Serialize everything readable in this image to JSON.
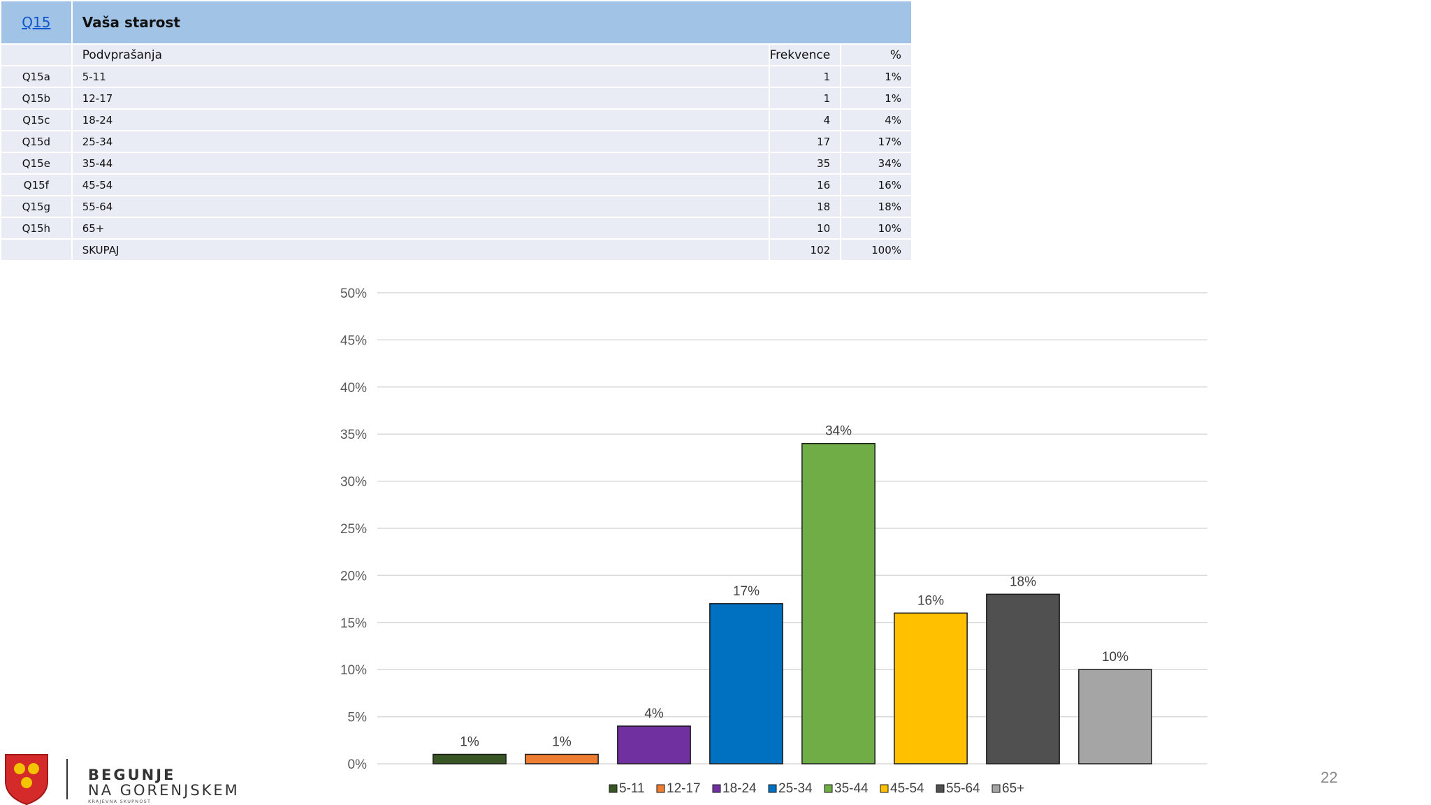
{
  "table": {
    "question_id": "Q15",
    "question_title": "Vaša starost",
    "header": [
      "Podvprašanja",
      "Frekvence",
      "%"
    ],
    "rows": [
      {
        "code": "Q15a",
        "label": "5-11",
        "freq": "1",
        "pct": "1%"
      },
      {
        "code": "Q15b",
        "label": "12-17",
        "freq": "1",
        "pct": "1%"
      },
      {
        "code": "Q15c",
        "label": "18-24",
        "freq": "4",
        "pct": "4%"
      },
      {
        "code": "Q15d",
        "label": "25-34",
        "freq": "17",
        "pct": "17%"
      },
      {
        "code": "Q15e",
        "label": "35-44",
        "freq": "35",
        "pct": "34%"
      },
      {
        "code": "Q15f",
        "label": "45-54",
        "freq": "16",
        "pct": "16%"
      },
      {
        "code": "Q15g",
        "label": "55-64",
        "freq": "18",
        "pct": "18%"
      },
      {
        "code": "Q15h",
        "label": "65+",
        "freq": "10",
        "pct": "10%"
      }
    ],
    "total": {
      "code": "",
      "label": "SKUPAJ",
      "freq": "102",
      "pct": "100%"
    }
  },
  "chart_data": {
    "type": "bar",
    "categories": [
      "5-11",
      "12-17",
      "18-24",
      "25-34",
      "35-44",
      "45-54",
      "55-64",
      "65+"
    ],
    "values": [
      1,
      1,
      4,
      17,
      34,
      16,
      18,
      10
    ],
    "data_labels": [
      "1%",
      "1%",
      "4%",
      "17%",
      "34%",
      "16%",
      "18%",
      "10%"
    ],
    "colors": [
      "#375623",
      "#ed7d31",
      "#7030a0",
      "#0070c0",
      "#70ad47",
      "#ffc000",
      "#505050",
      "#a5a5a5"
    ],
    "ylim": [
      0,
      50
    ],
    "ytick_values": [
      0,
      5,
      10,
      15,
      20,
      25,
      30,
      35,
      40,
      45,
      50
    ],
    "ytick_labels": [
      "0%",
      "5%",
      "10%",
      "15%",
      "20%",
      "25%",
      "30%",
      "35%",
      "40%",
      "45%",
      "50%"
    ],
    "grid": true,
    "legend_position": "bottom",
    "title": "",
    "xlabel": "",
    "ylabel": ""
  },
  "logo": {
    "line1": "BEGUNJE",
    "line2": "NA GORENJSKEM",
    "line3": "KRAJEVNA SKUPNOST"
  },
  "page_number": "22"
}
